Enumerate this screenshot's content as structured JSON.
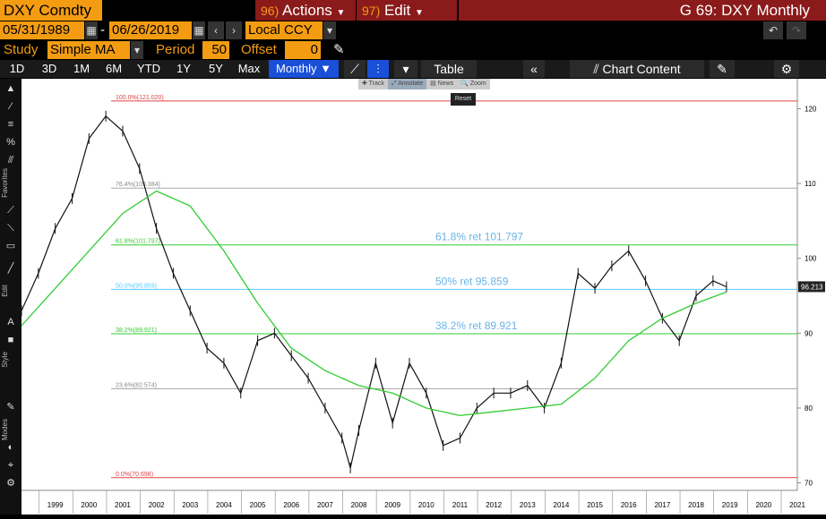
{
  "header": {
    "ticker": "DXY Comdty",
    "actions_num": "96)",
    "actions_label": "Actions",
    "edit_num": "97)",
    "edit_label": "Edit",
    "title": "G 69: DXY Monthly"
  },
  "dates": {
    "start": "05/31/1989",
    "sep": "-",
    "end": "06/26/2019",
    "currency": "Local CCY"
  },
  "study": {
    "label": "Study",
    "value": "Simple MA",
    "period_label": "Period",
    "period": "50",
    "offset_label": "Offset",
    "offset": "0"
  },
  "tabs": [
    "1D",
    "3D",
    "1M",
    "6M",
    "YTD",
    "1Y",
    "5Y",
    "Max",
    "Monthly ▼"
  ],
  "toolbar": {
    "table": "Table",
    "collapse": "«",
    "chart_content": "Chart Content"
  },
  "zoombar": [
    "✚ Track",
    "⤢ Annotate",
    "▤ News",
    "🔍 Zoom"
  ],
  "reset": "Reset",
  "side_labels": {
    "favorites": "Favorites",
    "edit": "Edit",
    "style": "Style",
    "modes": "Modes"
  },
  "chart_data": {
    "type": "line",
    "title": "",
    "x_ticks": [
      "1999",
      "2000",
      "2001",
      "2002",
      "2003",
      "2004",
      "2005",
      "2006",
      "2007",
      "2008",
      "2009",
      "2010",
      "2011",
      "2012",
      "2013",
      "2014",
      "2015",
      "2016",
      "2017",
      "2018",
      "2019",
      "2020",
      "2021"
    ],
    "y_ticks": [
      70,
      80,
      90,
      100,
      110,
      120
    ],
    "ylim": [
      69,
      124
    ],
    "last_price": "96.213",
    "fib_levels": [
      {
        "label": "100.0%(121.020)",
        "value": 121.02,
        "color": "#d44"
      },
      {
        "label": "76.4%(109.384)",
        "value": 109.384,
        "color": "#aaa"
      },
      {
        "label": "61.8%(101.797)",
        "value": 101.797,
        "color": "#3c3"
      },
      {
        "label": "50.0%(95.859)",
        "value": 95.859,
        "color": "#5cf"
      },
      {
        "label": "38.2%(89.921)",
        "value": 89.921,
        "color": "#3c3"
      },
      {
        "label": "23.6%(82.574)",
        "value": 82.574,
        "color": "#aaa"
      },
      {
        "label": "0.0%(70.698)",
        "value": 70.698,
        "color": "#d44"
      }
    ],
    "annotations": [
      {
        "text": "61.8% ret 101.797",
        "value": 101.797
      },
      {
        "text": "50% ret 95.859",
        "value": 95.859
      },
      {
        "text": "38.2% ret 89.921",
        "value": 89.921
      }
    ],
    "series": [
      {
        "x": [
          1998.5,
          1999,
          1999.5,
          2000,
          2000.5,
          2001,
          2001.5,
          2002,
          2002.5,
          2003,
          2003.5,
          2004,
          2004.5,
          2005,
          2005.5,
          2006,
          2006.5,
          2007,
          2007.5,
          2008,
          2008.25,
          2008.5,
          2009,
          2009.5,
          2010,
          2010.5,
          2011,
          2011.5,
          2012,
          2012.5,
          2013,
          2013.5,
          2014,
          2014.5,
          2015,
          2015.5,
          2016,
          2016.5,
          2017,
          2017.5,
          2018,
          2018.5,
          2019,
          2019.4
        ],
        "y": [
          93,
          98,
          104,
          108,
          116,
          119,
          117,
          112,
          104,
          98,
          93,
          88,
          86,
          82,
          89,
          90,
          87,
          84,
          80,
          76,
          72,
          77,
          86,
          78,
          86,
          82,
          75,
          76,
          80,
          82,
          82,
          83,
          80,
          86,
          98,
          96,
          99,
          101,
          97,
          92,
          89,
          95,
          97,
          96.2
        ]
      }
    ],
    "ma": {
      "name": "",
      "x": [
        1998.5,
        1999.5,
        2000.5,
        2001.5,
        2002.5,
        2003.5,
        2004.5,
        2005.5,
        2006.5,
        2007.5,
        2008.5,
        2009.5,
        2010.5,
        2011.5,
        2012.5,
        2013.5,
        2014.5,
        2015.5,
        2016.5,
        2017.5,
        2018.5,
        2019.4
      ],
      "y": [
        91,
        96,
        101,
        106,
        109,
        107,
        101,
        94,
        88,
        85,
        83,
        82,
        80,
        79,
        79.5,
        80,
        80.5,
        84,
        89,
        92,
        94,
        95.5
      ]
    }
  }
}
